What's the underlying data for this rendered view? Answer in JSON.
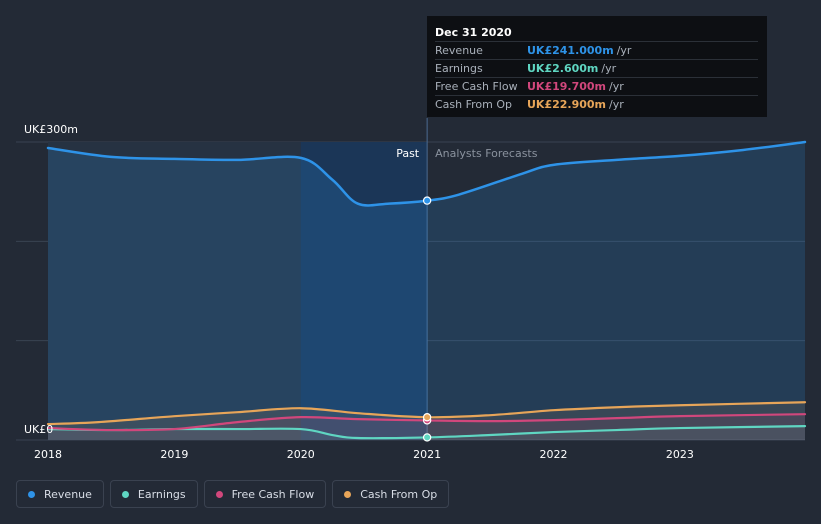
{
  "chart_data": {
    "type": "line",
    "title": "",
    "ylabel": "",
    "xlabel": "",
    "ylim": [
      0,
      300
    ],
    "y_tick_labels": [
      "UK£300m",
      "UK£0"
    ],
    "x_ticks": [
      "2018",
      "2019",
      "2020",
      "2021",
      "2022",
      "2023"
    ],
    "period_labels": {
      "past": "Past",
      "forecast": "Analysts Forecasts"
    },
    "divider_x": 2021.0,
    "series": [
      {
        "name": "Revenue",
        "color": "#2e93e8",
        "points": [
          [
            2018.0,
            294
          ],
          [
            2018.5,
            285
          ],
          [
            2019.0,
            283
          ],
          [
            2019.5,
            282
          ],
          [
            2020.0,
            284
          ],
          [
            2020.25,
            262
          ],
          [
            2020.45,
            238
          ],
          [
            2020.7,
            238
          ],
          [
            2021.0,
            241
          ],
          [
            2021.25,
            247
          ],
          [
            2021.75,
            268
          ],
          [
            2022.0,
            277
          ],
          [
            2022.5,
            282
          ],
          [
            2023.0,
            286
          ],
          [
            2023.5,
            292
          ],
          [
            2023.99,
            300
          ]
        ]
      },
      {
        "name": "Earnings",
        "color": "#5fd6c2",
        "points": [
          [
            2018.0,
            11
          ],
          [
            2018.5,
            10
          ],
          [
            2019.0,
            11
          ],
          [
            2019.5,
            11
          ],
          [
            2020.0,
            11
          ],
          [
            2020.25,
            5
          ],
          [
            2020.45,
            2
          ],
          [
            2021.0,
            2.6
          ],
          [
            2021.5,
            5
          ],
          [
            2022.0,
            8
          ],
          [
            2022.5,
            10
          ],
          [
            2023.0,
            12
          ],
          [
            2023.99,
            14
          ]
        ]
      },
      {
        "name": "Free Cash Flow",
        "color": "#d1477c",
        "points": [
          [
            2018.0,
            12
          ],
          [
            2018.5,
            10
          ],
          [
            2019.0,
            11
          ],
          [
            2019.5,
            18
          ],
          [
            2020.0,
            23
          ],
          [
            2020.45,
            21
          ],
          [
            2021.0,
            19.7
          ],
          [
            2021.5,
            19
          ],
          [
            2022.0,
            20
          ],
          [
            2022.5,
            22
          ],
          [
            2023.0,
            24
          ],
          [
            2023.99,
            26
          ]
        ]
      },
      {
        "name": "Cash From Op",
        "color": "#e7a559",
        "points": [
          [
            2018.0,
            16
          ],
          [
            2018.4,
            18
          ],
          [
            2019.0,
            24
          ],
          [
            2019.5,
            28
          ],
          [
            2020.0,
            32
          ],
          [
            2020.45,
            27
          ],
          [
            2021.0,
            22.9
          ],
          [
            2021.5,
            25
          ],
          [
            2022.0,
            30
          ],
          [
            2022.5,
            33
          ],
          [
            2023.0,
            35
          ],
          [
            2023.99,
            38
          ]
        ]
      }
    ]
  },
  "tooltip": {
    "date": "Dec 31 2020",
    "rows": [
      {
        "name": "Revenue",
        "value": "UK£241.000m",
        "unit": "/yr",
        "color": "#2e93e8"
      },
      {
        "name": "Earnings",
        "value": "UK£2.600m",
        "unit": "/yr",
        "color": "#5fd6c2"
      },
      {
        "name": "Free Cash Flow",
        "value": "UK£19.700m",
        "unit": "/yr",
        "color": "#d1477c"
      },
      {
        "name": "Cash From Op",
        "value": "UK£22.900m",
        "unit": "/yr",
        "color": "#e7a559"
      }
    ]
  },
  "legend": [
    {
      "label": "Revenue",
      "color": "#2e93e8"
    },
    {
      "label": "Earnings",
      "color": "#5fd6c2"
    },
    {
      "label": "Free Cash Flow",
      "color": "#d1477c"
    },
    {
      "label": "Cash From Op",
      "color": "#e7a559"
    }
  ]
}
